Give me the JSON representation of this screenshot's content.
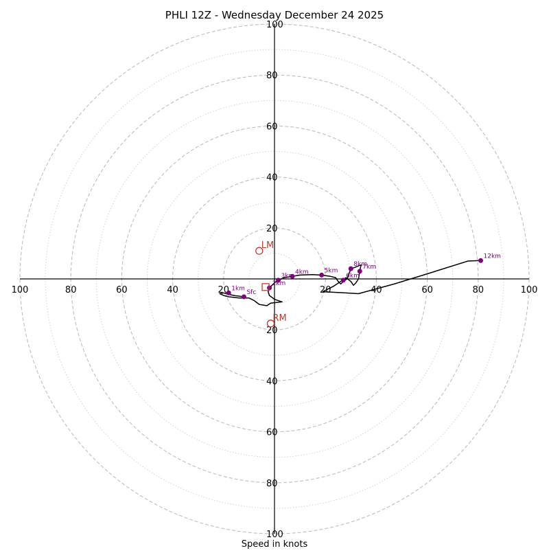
{
  "chart_data": {
    "type": "hodograph",
    "title": "PHLI 12Z - Wednesday December 24 2025",
    "xlabel": "Speed in knots",
    "units": "knots",
    "max_speed": 100,
    "ring_major": [
      20,
      40,
      60,
      80,
      100
    ],
    "ring_minor": [
      10,
      30,
      50,
      70,
      90
    ],
    "x_ticks": [
      "100",
      "80",
      "60",
      "40",
      "20",
      "20",
      "40",
      "60",
      "80",
      "100"
    ],
    "x_tick_values": [
      -100,
      -80,
      -60,
      -40,
      -20,
      20,
      40,
      60,
      80,
      100
    ],
    "y_ticks": [
      "100",
      "80",
      "60",
      "40",
      "20",
      "20",
      "40",
      "60",
      "80",
      "100"
    ],
    "y_tick_values": [
      100,
      80,
      60,
      40,
      20,
      -20,
      -40,
      -60,
      -80,
      -100
    ],
    "colors": {
      "trace": "#000000",
      "height_marker": "#800080",
      "storm_motion": "#c0392b",
      "grid": "#bdbdbd",
      "axis": "#000000"
    },
    "trace": [
      [
        -12,
        -7
      ],
      [
        -16,
        -6.5
      ],
      [
        -18,
        -6
      ],
      [
        -20,
        -5.5
      ],
      [
        -21.5,
        -5.8
      ],
      [
        -20,
        -6.5
      ],
      [
        -18,
        -7
      ],
      [
        -14,
        -7.5
      ],
      [
        -10,
        -7.5
      ],
      [
        -8,
        -8.5
      ],
      [
        -6,
        -10
      ],
      [
        -3,
        -10.5
      ],
      [
        -1.5,
        -9.5
      ],
      [
        3,
        -9
      ],
      [
        0,
        -8
      ],
      [
        -2,
        -6.5
      ],
      [
        -2.5,
        -5
      ],
      [
        -2,
        -3.5
      ],
      [
        -1,
        -2.5
      ],
      [
        0,
        -1.5
      ],
      [
        1.5,
        -0.5
      ],
      [
        4,
        0.5
      ],
      [
        7,
        1
      ],
      [
        10,
        1.5
      ],
      [
        15,
        1.7
      ],
      [
        18,
        1.5
      ],
      [
        20,
        1.3
      ],
      [
        22,
        1
      ],
      [
        24,
        0.5
      ],
      [
        25,
        -1
      ],
      [
        26,
        -2
      ],
      [
        27,
        -1
      ],
      [
        28.5,
        0
      ],
      [
        30,
        4
      ],
      [
        31.5,
        4.5
      ],
      [
        34,
        5.5
      ],
      [
        33.5,
        3
      ],
      [
        33,
        0
      ],
      [
        32,
        -1.5
      ],
      [
        31,
        -2.5
      ],
      [
        30,
        -1
      ],
      [
        28,
        0.5
      ],
      [
        27,
        -0.5
      ],
      [
        26,
        -1
      ],
      [
        23,
        -3
      ],
      [
        20,
        -4.5
      ],
      [
        19,
        -5
      ],
      [
        28,
        -5.5
      ],
      [
        33,
        -5.8
      ],
      [
        47,
        -2
      ],
      [
        60,
        2
      ],
      [
        76,
        7
      ],
      [
        81,
        7.2
      ]
    ],
    "height_markers": [
      {
        "label": "Sfc",
        "u": -12,
        "v": -7
      },
      {
        "label": "1km",
        "u": -18,
        "v": -5.5
      },
      {
        "label": "2km",
        "u": -2,
        "v": -3.5
      },
      {
        "label": "3km",
        "u": 1.5,
        "v": -0.5
      },
      {
        "label": "4km",
        "u": 7,
        "v": 1
      },
      {
        "label": "5km",
        "u": 18.5,
        "v": 1.5
      },
      {
        "label": "6km",
        "u": 27,
        "v": -0.5
      },
      {
        "label": "7km",
        "u": 33.5,
        "v": 3
      },
      {
        "label": "8km",
        "u": 30,
        "v": 4
      },
      {
        "label": "12km",
        "u": 81,
        "v": 7.2
      }
    ],
    "storm_motion": [
      {
        "label": "LM",
        "u": -6,
        "v": 11,
        "shape": "circle"
      },
      {
        "label": "RM",
        "u": -1.5,
        "v": -17.5,
        "shape": "circle"
      },
      {
        "label": "",
        "u": -3.5,
        "v": -3.2,
        "shape": "square"
      }
    ]
  }
}
